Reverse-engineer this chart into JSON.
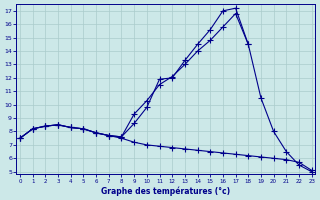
{
  "xlabel": "Graphe des températures (°c)",
  "bg_color": "#cce8e8",
  "grid_color": "#aacccc",
  "line_color": "#00008b",
  "yticks": [
    5,
    6,
    7,
    8,
    9,
    10,
    11,
    12,
    13,
    14,
    15,
    16,
    17
  ],
  "xticks": [
    0,
    1,
    2,
    3,
    4,
    5,
    6,
    7,
    8,
    9,
    10,
    11,
    12,
    13,
    14,
    15,
    16,
    17,
    18,
    19,
    20,
    21,
    22,
    23
  ],
  "line1_x": [
    0,
    1,
    2,
    3,
    4,
    5,
    6,
    7,
    8,
    9,
    10,
    11,
    12,
    13,
    14,
    15,
    16,
    17,
    18,
    19,
    20,
    21,
    22,
    23
  ],
  "line1_y": [
    7.5,
    8.2,
    8.4,
    8.5,
    8.3,
    8.2,
    7.9,
    7.7,
    7.6,
    8.6,
    9.8,
    11.9,
    12.0,
    13.3,
    14.5,
    15.6,
    17.0,
    17.2,
    14.5,
    10.5,
    8.0,
    6.5,
    5.5,
    5.0
  ],
  "line2_x": [
    0,
    1,
    2,
    3,
    4,
    5,
    6,
    7,
    8,
    9,
    10,
    11,
    12,
    13,
    14,
    15,
    16,
    17,
    18
  ],
  "line2_y": [
    7.5,
    8.2,
    8.4,
    8.5,
    8.3,
    8.2,
    7.9,
    7.7,
    7.6,
    9.3,
    10.3,
    11.5,
    12.1,
    13.0,
    14.0,
    14.8,
    15.8,
    16.8,
    14.5
  ],
  "line3_x": [
    0,
    1,
    2,
    3,
    4,
    5,
    6,
    7,
    8,
    9,
    10,
    11,
    12,
    13,
    14,
    15,
    16,
    17,
    18,
    19,
    20,
    21,
    22,
    23
  ],
  "line3_y": [
    7.5,
    8.2,
    8.4,
    8.5,
    8.3,
    8.2,
    7.9,
    7.7,
    7.5,
    7.2,
    7.0,
    6.9,
    6.8,
    6.7,
    6.6,
    6.5,
    6.4,
    6.3,
    6.2,
    6.1,
    6.0,
    5.9,
    5.7,
    5.1
  ]
}
